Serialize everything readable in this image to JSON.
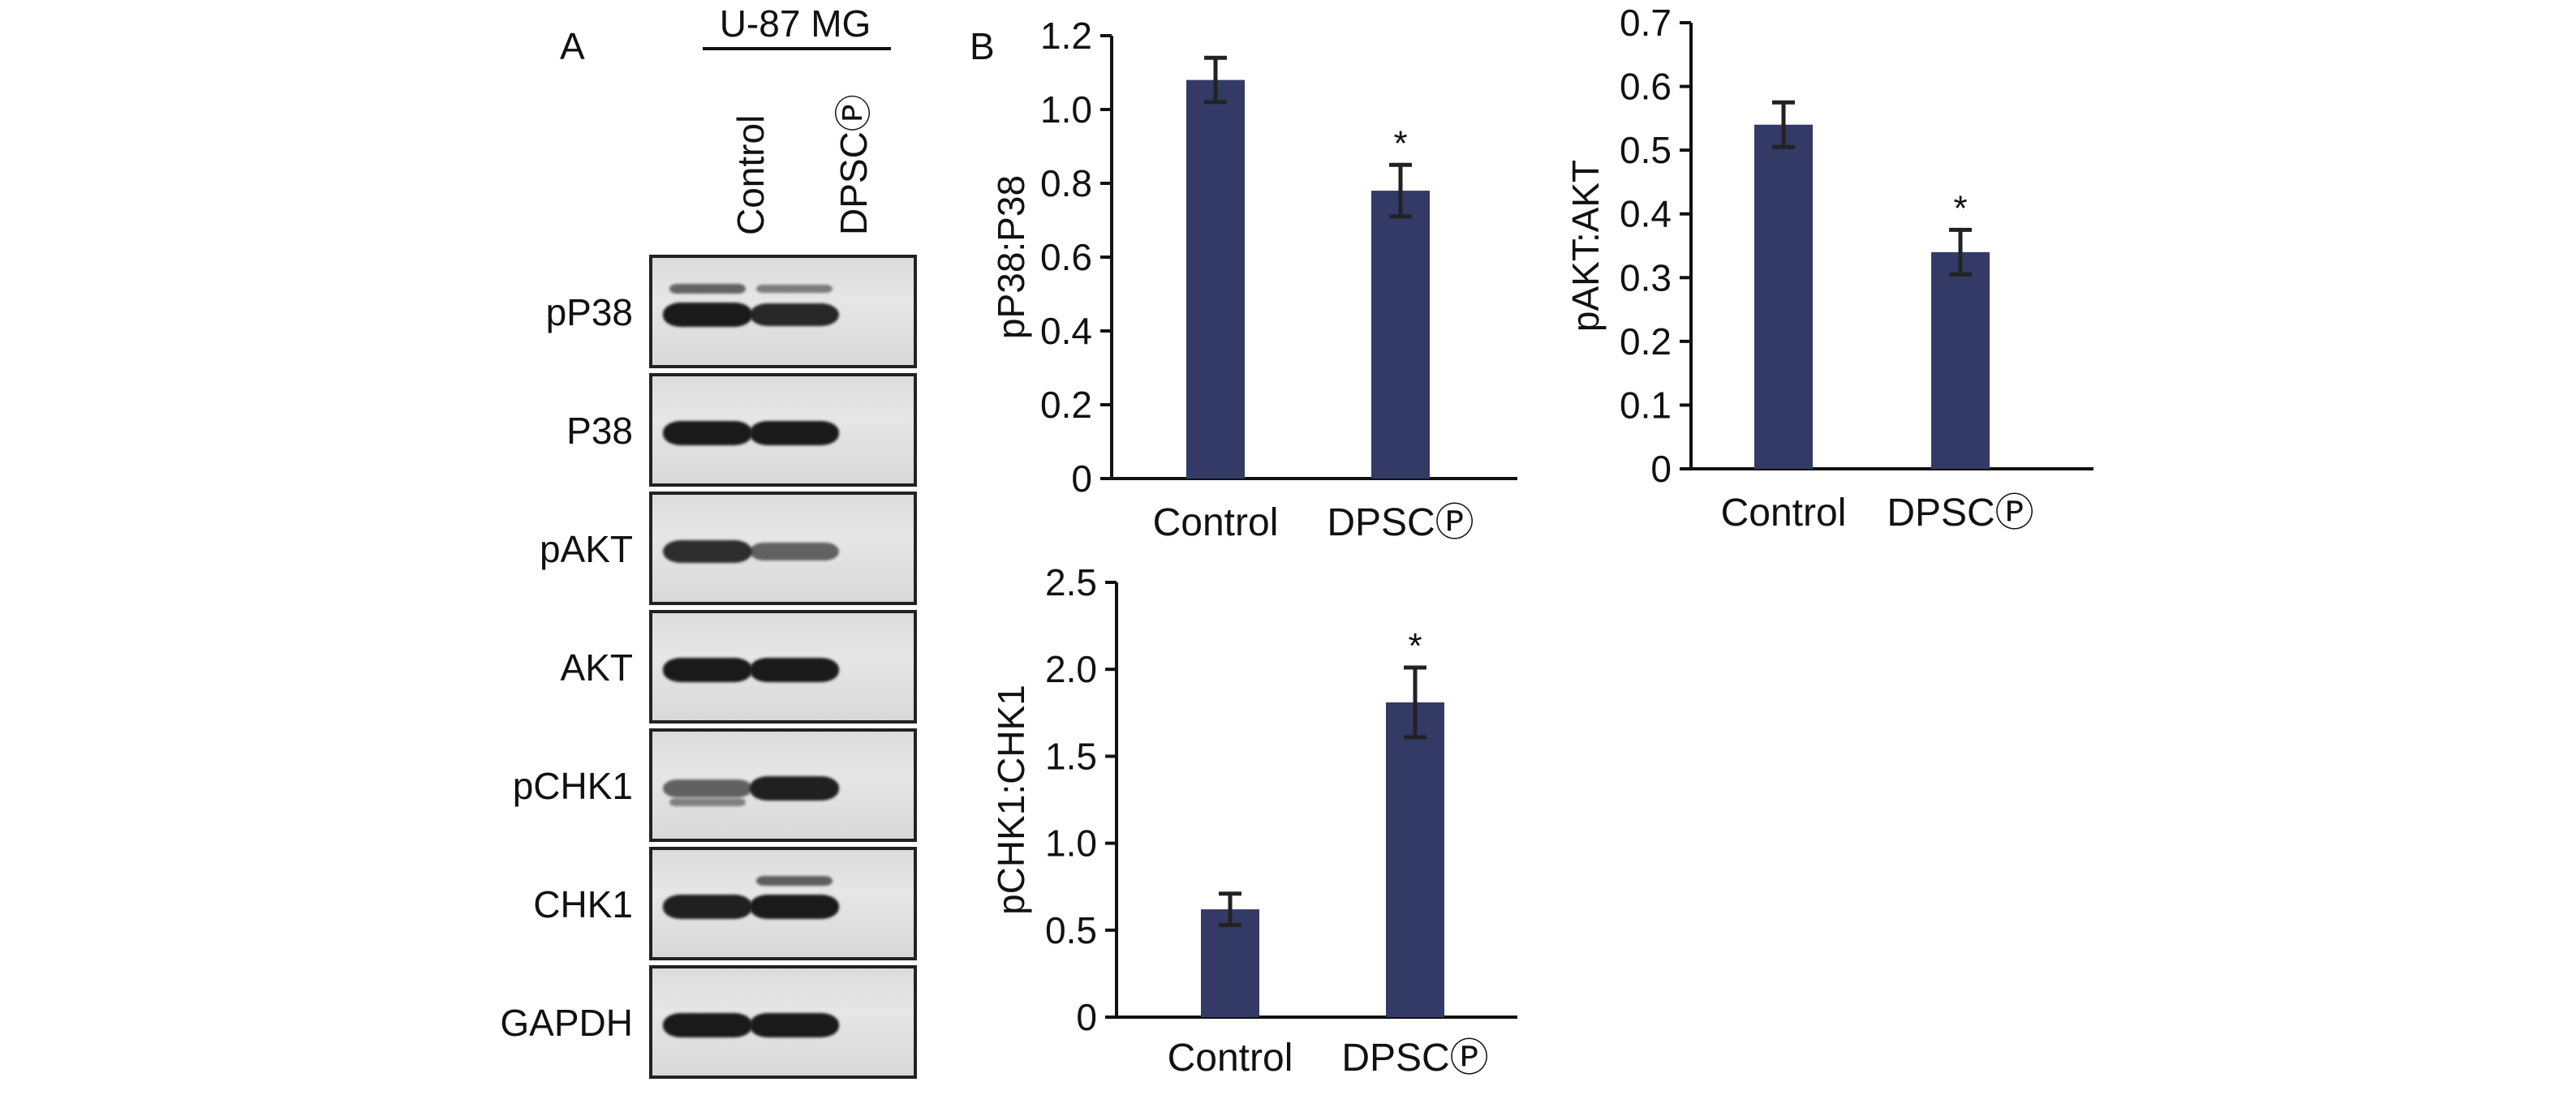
{
  "panels": {
    "a_label": "A",
    "b_label": "B"
  },
  "blot": {
    "cell_line": "U-87 MG",
    "lanes": [
      "Control",
      "DPSCⓅ"
    ],
    "rows": [
      {
        "label": "pP38",
        "lane_intensity": [
          1.0,
          0.9
        ],
        "upper_band": [
          0.55,
          0.35
        ]
      },
      {
        "label": "P38",
        "lane_intensity": [
          1.0,
          1.0
        ],
        "upper_band": [
          0,
          0
        ]
      },
      {
        "label": "pAKT",
        "lane_intensity": [
          0.85,
          0.45
        ],
        "upper_band": [
          0,
          0
        ]
      },
      {
        "label": "AKT",
        "lane_intensity": [
          1.0,
          1.0
        ],
        "upper_band": [
          0,
          0
        ]
      },
      {
        "label": "pCHK1",
        "lane_intensity": [
          0.45,
          0.95
        ],
        "upper_band": [
          0.3,
          0
        ]
      },
      {
        "label": "CHK1",
        "lane_intensity": [
          0.95,
          1.0
        ],
        "upper_band": [
          0,
          0.6
        ]
      },
      {
        "label": "GAPDH",
        "lane_intensity": [
          1.0,
          1.0
        ],
        "upper_band": [
          0,
          0
        ]
      }
    ],
    "colors": {
      "band": "#1a1a1a",
      "background": "#dcdcdc"
    }
  },
  "chart_data": [
    {
      "type": "bar",
      "categories": [
        "Control",
        "DPSCⓅ"
      ],
      "values": [
        1.08,
        0.78
      ],
      "errors": [
        0.06,
        0.07
      ],
      "significance": [
        "",
        "*"
      ],
      "ylabel": "pP38:P38",
      "ylim": [
        0,
        1.2
      ],
      "yticks": [
        "0",
        "0.2",
        "0.4",
        "0.6",
        "0.8",
        "1.0",
        "1.2"
      ],
      "bar_color": "#333a66"
    },
    {
      "type": "bar",
      "categories": [
        "Control",
        "DPSCⓅ"
      ],
      "values": [
        0.54,
        0.34
      ],
      "errors": [
        0.035,
        0.035
      ],
      "significance": [
        "",
        "*"
      ],
      "ylabel": "pAKT:AKT",
      "ylim": [
        0,
        0.7
      ],
      "yticks": [
        "0",
        "0.1",
        "0.2",
        "0.3",
        "0.4",
        "0.5",
        "0.6",
        "0.7"
      ],
      "bar_color": "#333a66"
    },
    {
      "type": "bar",
      "categories": [
        "Control",
        "DPSCⓅ"
      ],
      "values": [
        0.62,
        1.81
      ],
      "errors": [
        0.09,
        0.2
      ],
      "significance": [
        "",
        "*"
      ],
      "ylabel": "pCHK1:CHK1",
      "ylim": [
        0,
        2.5
      ],
      "yticks": [
        "0",
        "0.5",
        "1.0",
        "1.5",
        "2.0",
        "2.5"
      ],
      "bar_color": "#333a66"
    }
  ]
}
